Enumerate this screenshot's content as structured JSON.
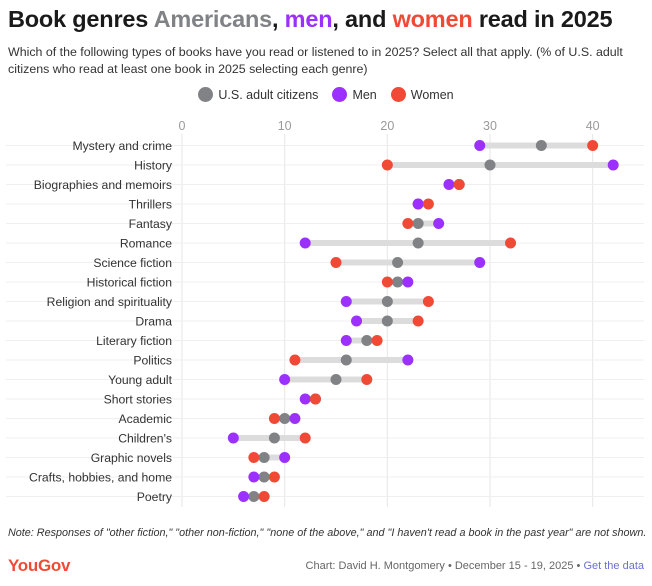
{
  "title": {
    "prefix": "Book genres ",
    "americans": "Americans",
    "comma": ", ",
    "men": "men",
    "and": ", and ",
    "women": "women",
    "suffix": " read in 2025"
  },
  "subtitle": "Which of the following types of books have you read or listened to in 2025? Select all that apply. (% of U.S. adult citizens who read at least one book in 2025 selecting each genre)",
  "colors": {
    "all": "#808285",
    "men": "#9b30ff",
    "women": "#f04a36",
    "range": "#dcdcdc",
    "grid": "#e6e6e6",
    "text": "#333333"
  },
  "legend": [
    {
      "label": "U.S. adult citizens",
      "color": "#808285"
    },
    {
      "label": "Men",
      "color": "#9b30ff"
    },
    {
      "label": "Women",
      "color": "#f04a36"
    }
  ],
  "chart_data": {
    "type": "scatter",
    "subtype": "dumbbell",
    "xlim": [
      0,
      45
    ],
    "xticks": [
      0,
      10,
      20,
      30,
      40
    ],
    "grid": true,
    "legend_position": "top-center",
    "categories": [
      "Mystery and crime",
      "History",
      "Biographies and memoirs",
      "Thrillers",
      "Fantasy",
      "Romance",
      "Science fiction",
      "Historical fiction",
      "Religion and spirituality",
      "Drama",
      "Literary fiction",
      "Politics",
      "Young adult",
      "Short stories",
      "Academic",
      "Children's",
      "Graphic novels",
      "Crafts, hobbies, and home",
      "Poetry"
    ],
    "series": [
      {
        "name": "U.S. adult citizens",
        "values": [
          35,
          30,
          27,
          23,
          23,
          23,
          21,
          21,
          20,
          20,
          18,
          16,
          15,
          13,
          10,
          9,
          8,
          8,
          7
        ]
      },
      {
        "name": "Men",
        "values": [
          29,
          42,
          26,
          23,
          25,
          12,
          29,
          22,
          16,
          17,
          16,
          22,
          10,
          12,
          11,
          5,
          10,
          7,
          6
        ]
      },
      {
        "name": "Women",
        "values": [
          40,
          20,
          27,
          24,
          22,
          32,
          15,
          20,
          24,
          23,
          19,
          11,
          18,
          13,
          9,
          12,
          7,
          9,
          8
        ]
      }
    ]
  },
  "note": "Note: Responses of \"other fiction,\" \"other non-fiction,\" \"none of the above,\" and \"I haven't read a book in the past year\" are not shown.",
  "logo": "YouGov",
  "footer": {
    "credit": "Chart: David H. Montgomery • December 15 - 19, 2025 • ",
    "link": "Get the data"
  }
}
